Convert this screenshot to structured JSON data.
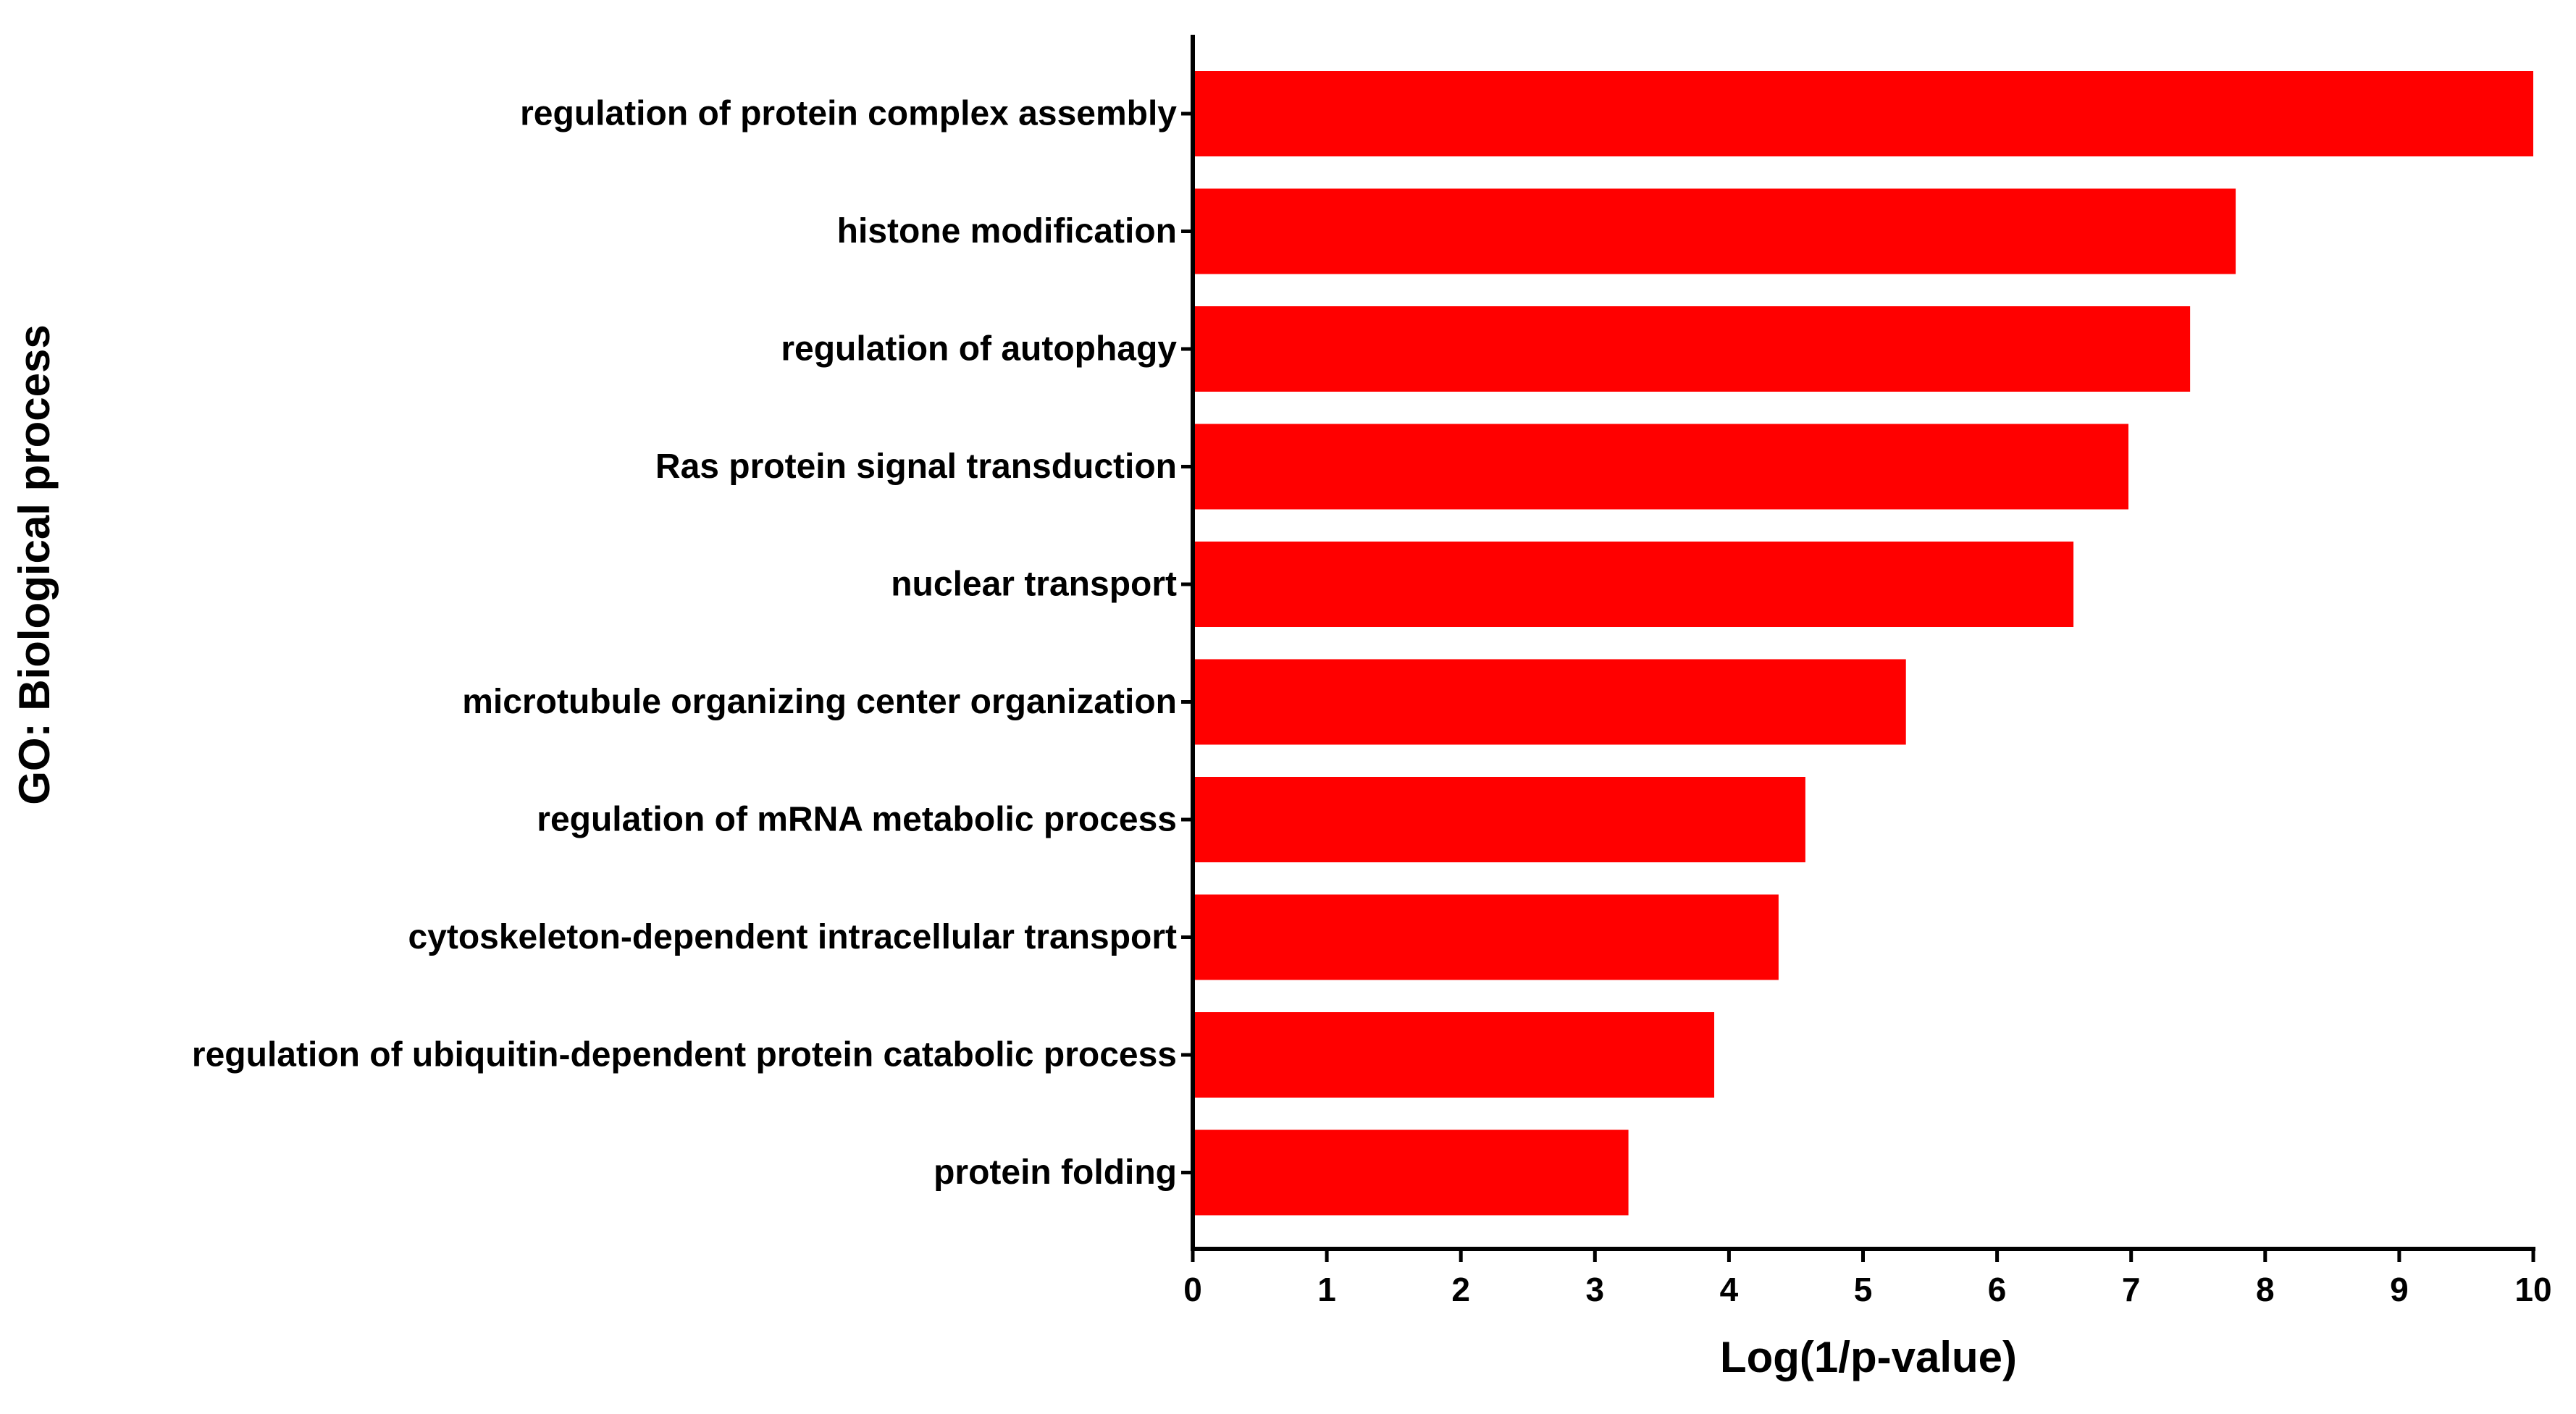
{
  "chart_data": {
    "type": "bar",
    "orientation": "horizontal",
    "categories": [
      "regulation of protein complex assembly",
      "histone modification",
      "regulation of autophagy",
      "Ras protein signal transduction",
      "nuclear transport",
      "microtubule organizing center organization",
      "regulation of mRNA metabolic process",
      "cytoskeleton-dependent intracellular transport",
      "regulation of ubiquitin-dependent protein catabolic process",
      "protein folding"
    ],
    "values": [
      10.0,
      7.78,
      7.44,
      6.98,
      6.57,
      5.32,
      4.57,
      4.37,
      3.89,
      3.25
    ],
    "title": "",
    "xlabel": "Log(1/p-value)",
    "ylabel": "GO: Biological process",
    "xlim": [
      0,
      10
    ],
    "xticks": [
      "0",
      "1",
      "2",
      "3",
      "4",
      "5",
      "6",
      "7",
      "8",
      "9",
      "10"
    ],
    "grid": false,
    "legend": "none",
    "bar_color": "#ff0000",
    "axis_color": "#000000"
  }
}
